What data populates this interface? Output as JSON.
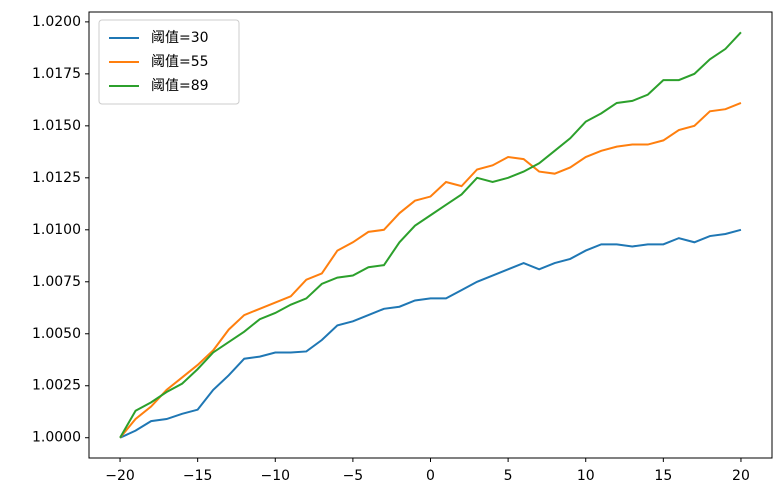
{
  "chart_data": {
    "type": "line",
    "x": [
      -20,
      -19,
      -18,
      -17,
      -16,
      -15,
      -14,
      -13,
      -12,
      -11,
      -10,
      -9,
      -8,
      -7,
      -6,
      -5,
      -4,
      -3,
      -2,
      -1,
      0,
      1,
      2,
      3,
      4,
      5,
      6,
      7,
      8,
      9,
      10,
      11,
      12,
      13,
      14,
      15,
      16,
      17,
      18,
      19,
      20
    ],
    "series": [
      {
        "name": "阈值=30",
        "color": "#1f77b4",
        "values": [
          1.0,
          1.00034,
          1.0008,
          1.0009,
          1.00115,
          1.00135,
          1.0023,
          1.003,
          1.0038,
          1.0039,
          1.0041,
          1.0041,
          1.00415,
          1.0047,
          1.0054,
          1.0056,
          1.0059,
          1.0062,
          1.0063,
          1.0066,
          1.0067,
          1.0067,
          1.0071,
          1.0075,
          1.0078,
          1.0081,
          1.0084,
          1.0081,
          1.0084,
          1.0086,
          1.009,
          1.0093,
          1.0093,
          1.0092,
          1.0093,
          1.0093,
          1.0096,
          1.0094,
          1.0097,
          1.0098,
          1.01
        ]
      },
      {
        "name": "阈值=55",
        "color": "#ff7f0e",
        "values": [
          1.0,
          1.0009,
          1.0015,
          1.0023,
          1.0029,
          1.0035,
          1.0042,
          1.0052,
          1.0059,
          1.0062,
          1.0065,
          1.0068,
          1.0076,
          1.0079,
          1.009,
          1.0094,
          1.0099,
          1.01,
          1.0108,
          1.0114,
          1.0116,
          1.0123,
          1.0121,
          1.0129,
          1.0131,
          1.0135,
          1.0134,
          1.0128,
          1.0127,
          1.013,
          1.0135,
          1.0138,
          1.014,
          1.0141,
          1.0141,
          1.0143,
          1.0148,
          1.015,
          1.0157,
          1.0158,
          1.0161
        ]
      },
      {
        "name": "阈值=89",
        "color": "#2ca02c",
        "values": [
          1.0,
          1.0013,
          1.0017,
          1.0022,
          1.0026,
          1.0033,
          1.0041,
          1.0046,
          1.0051,
          1.0057,
          1.006,
          1.0064,
          1.0067,
          1.0074,
          1.0077,
          1.0078,
          1.0082,
          1.0083,
          1.0094,
          1.0102,
          1.0107,
          1.0112,
          1.0117,
          1.0125,
          1.0123,
          1.0125,
          1.0128,
          1.0132,
          1.0138,
          1.0144,
          1.0152,
          1.0156,
          1.0161,
          1.0162,
          1.0165,
          1.0172,
          1.0172,
          1.0175,
          1.0182,
          1.0187,
          1.0195
        ]
      }
    ],
    "xlim": [
      -22,
      22
    ],
    "xticks": [
      {
        "value": -20,
        "label": "−20"
      },
      {
        "value": -15,
        "label": "−15"
      },
      {
        "value": -10,
        "label": "−10"
      },
      {
        "value": -5,
        "label": "−5"
      },
      0,
      5,
      10,
      15,
      20
    ],
    "ylim": [
      0.999025,
      1.020475
    ],
    "yticks": [
      {
        "value": 1.0,
        "label": "1.0000"
      },
      {
        "value": 1.0025,
        "label": "1.0025"
      },
      {
        "value": 1.005,
        "label": "1.0050"
      },
      {
        "value": 1.0075,
        "label": "1.0075"
      },
      {
        "value": 1.01,
        "label": "1.0100"
      },
      {
        "value": 1.0125,
        "label": "1.0125"
      },
      {
        "value": 1.015,
        "label": "1.0150"
      },
      {
        "value": 1.0175,
        "label": "1.0175"
      },
      {
        "value": 1.02,
        "label": "1.0200"
      }
    ],
    "legend": "upper left"
  }
}
